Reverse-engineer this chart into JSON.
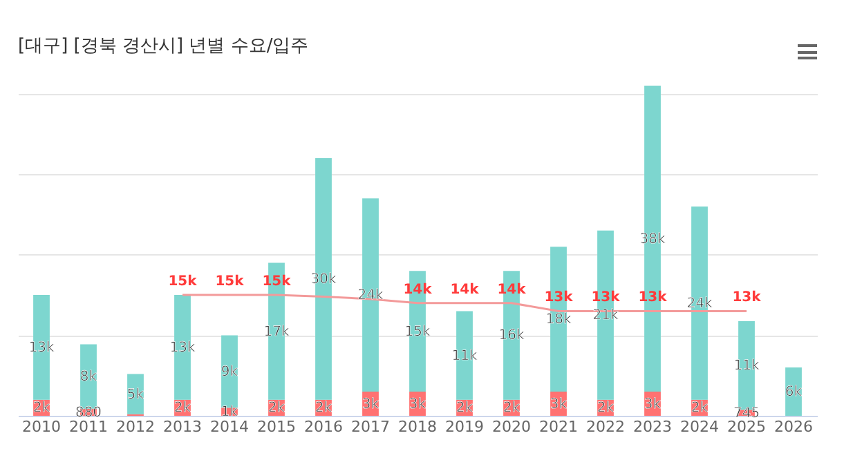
{
  "chart_data": {
    "type": "bar",
    "title": "[대구] [경북 경산시] 년별 수요/입주",
    "stacked": true,
    "grid": "y",
    "tick_labels": "x",
    "categories": [
      "2010",
      "2011",
      "2012",
      "2013",
      "2014",
      "2015",
      "2016",
      "2017",
      "2018",
      "2019",
      "2020",
      "2021",
      "2022",
      "2023",
      "2024",
      "2025",
      "2026"
    ],
    "yticks": [
      {
        "value": 0,
        "label": null
      },
      {
        "value": 10000,
        "label": null
      },
      {
        "value": 20000,
        "label": null
      },
      {
        "value": 30000,
        "label": null
      },
      {
        "value": 40000,
        "label": null
      }
    ],
    "series": [
      {
        "color": "#ff7272",
        "values": [
          2000,
          880,
          200,
          2000,
          1000,
          2000,
          2000,
          3000,
          3000,
          2000,
          2000,
          3000,
          2000,
          3000,
          2000,
          745,
          null
        ],
        "value_labels": [
          "2k",
          "880",
          null,
          "2k",
          "1k",
          "2k",
          "2k",
          "3k",
          "3k",
          "2k",
          "2k",
          "3k",
          "2k",
          "3k",
          "2k",
          "745",
          null
        ]
      },
      {
        "color": "#7dd6cf",
        "values": [
          13000,
          8000,
          5000,
          13000,
          9000,
          17000,
          30000,
          24000,
          15000,
          11000,
          16000,
          18000,
          21000,
          38000,
          24000,
          11000,
          6000
        ],
        "value_labels": [
          "13k",
          "8k",
          "5k",
          "13k",
          "9k",
          "17k",
          "30k",
          "24k",
          "15k",
          "11k",
          "16k",
          "18k",
          "21k",
          "38k",
          "24k",
          "11k",
          "6k"
        ]
      },
      {
        "type": "line",
        "color": "#f39a9a",
        "values": [
          null,
          null,
          null,
          15000,
          15000,
          15000,
          14800,
          14500,
          14000,
          14000,
          14000,
          13000,
          13000,
          13000,
          13000,
          13000,
          null
        ],
        "value_labels": [
          null,
          null,
          null,
          "15k",
          "15k",
          "15k",
          null,
          null,
          "14k",
          "14k",
          "14k",
          "13k",
          "13k",
          "13k",
          null,
          "13k",
          null
        ]
      }
    ]
  }
}
